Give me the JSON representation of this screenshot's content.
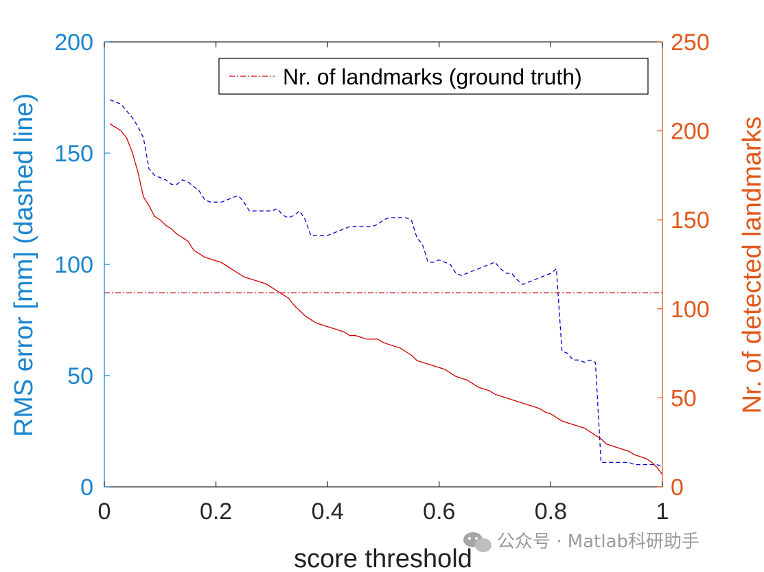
{
  "chart_data": {
    "type": "line",
    "xlabel": "score threshold",
    "ylabel_left": "RMS error [mm] (dashed line)",
    "ylabel_right": "Nr. of detected landmarks",
    "xlim": [
      0,
      1
    ],
    "ylim_left": [
      0,
      200
    ],
    "ylim_right": [
      0,
      250
    ],
    "xticks": [
      0,
      0.2,
      0.4,
      0.6,
      0.8,
      1
    ],
    "xtick_labels": [
      "0",
      "0.2",
      "0.4",
      "0.6",
      "0.8",
      "1"
    ],
    "yticks_left": [
      0,
      50,
      100,
      150,
      200
    ],
    "ytick_labels_left": [
      "0",
      "50",
      "100",
      "150",
      "200"
    ],
    "yticks_right": [
      0,
      50,
      100,
      150,
      200,
      250
    ],
    "ytick_labels_right": [
      "0",
      "50",
      "100",
      "150",
      "200",
      "250"
    ],
    "grid": false,
    "legend_position": "top-right",
    "colors": {
      "left_axis": "#1a85cf",
      "right_axis": "#e0581a",
      "rms_line": "#0000cc",
      "landmarks_line": "#cc0000",
      "ground_truth_line": "#cc0000"
    },
    "series": [
      {
        "axis": "left",
        "style": "dashed",
        "x": [
          0.01,
          0.02,
          0.03,
          0.04,
          0.05,
          0.06,
          0.07,
          0.08,
          0.09,
          0.1,
          0.11,
          0.12,
          0.13,
          0.14,
          0.15,
          0.16,
          0.17,
          0.18,
          0.19,
          0.2,
          0.21,
          0.22,
          0.23,
          0.24,
          0.25,
          0.26,
          0.27,
          0.28,
          0.29,
          0.3,
          0.31,
          0.32,
          0.33,
          0.34,
          0.35,
          0.36,
          0.37,
          0.38,
          0.39,
          0.4,
          0.41,
          0.42,
          0.43,
          0.44,
          0.45,
          0.46,
          0.47,
          0.48,
          0.49,
          0.5,
          0.51,
          0.52,
          0.53,
          0.54,
          0.55,
          0.56,
          0.57,
          0.58,
          0.59,
          0.6,
          0.61,
          0.62,
          0.63,
          0.64,
          0.65,
          0.66,
          0.67,
          0.68,
          0.69,
          0.7,
          0.71,
          0.72,
          0.73,
          0.74,
          0.75,
          0.76,
          0.77,
          0.78,
          0.79,
          0.8,
          0.81,
          0.82,
          0.83,
          0.84,
          0.85,
          0.86,
          0.87,
          0.88,
          0.89,
          0.9,
          0.91,
          0.92,
          0.93,
          0.94,
          0.95,
          0.96,
          0.97,
          0.98,
          0.99,
          1.0
        ],
        "values": [
          174,
          173,
          172,
          169,
          166,
          162,
          157,
          143,
          140,
          139,
          138,
          136,
          136,
          138,
          137,
          135,
          133,
          129,
          128,
          128,
          128,
          129,
          130,
          131,
          128,
          124,
          124,
          124,
          124,
          124,
          125,
          122,
          121,
          122,
          124,
          120,
          113,
          113,
          113,
          113,
          114,
          115,
          116,
          117,
          117,
          117,
          117,
          117,
          118,
          120,
          121,
          121,
          121,
          121,
          120,
          112,
          109,
          101,
          101,
          102,
          101,
          100,
          96,
          95,
          96,
          97,
          98,
          99,
          100,
          101,
          98,
          96,
          96,
          93,
          91,
          92,
          93,
          94,
          95,
          96,
          98,
          61,
          60,
          57,
          57,
          56,
          57,
          56,
          11,
          11,
          11,
          11,
          11,
          11,
          10,
          10,
          10,
          10,
          10,
          9
        ]
      },
      {
        "axis": "right",
        "style": "solid",
        "x": [
          0.01,
          0.02,
          0.03,
          0.04,
          0.05,
          0.06,
          0.07,
          0.08,
          0.09,
          0.1,
          0.11,
          0.12,
          0.13,
          0.14,
          0.15,
          0.16,
          0.17,
          0.18,
          0.19,
          0.2,
          0.21,
          0.22,
          0.23,
          0.24,
          0.25,
          0.26,
          0.27,
          0.28,
          0.29,
          0.3,
          0.31,
          0.32,
          0.33,
          0.34,
          0.35,
          0.36,
          0.37,
          0.38,
          0.39,
          0.4,
          0.41,
          0.42,
          0.43,
          0.44,
          0.45,
          0.46,
          0.47,
          0.48,
          0.49,
          0.5,
          0.51,
          0.52,
          0.53,
          0.54,
          0.55,
          0.56,
          0.57,
          0.58,
          0.59,
          0.6,
          0.61,
          0.62,
          0.63,
          0.64,
          0.65,
          0.66,
          0.67,
          0.68,
          0.69,
          0.7,
          0.71,
          0.72,
          0.73,
          0.74,
          0.75,
          0.76,
          0.77,
          0.78,
          0.79,
          0.8,
          0.81,
          0.82,
          0.83,
          0.84,
          0.85,
          0.86,
          0.87,
          0.88,
          0.89,
          0.9,
          0.91,
          0.92,
          0.93,
          0.94,
          0.95,
          0.96,
          0.97,
          0.98,
          0.99,
          1.0
        ],
        "values": [
          204,
          202,
          200,
          196,
          188,
          177,
          163,
          158,
          152,
          150,
          147,
          145,
          142,
          140,
          138,
          133,
          131,
          129,
          128,
          127,
          126,
          124,
          122,
          120,
          118,
          117,
          116,
          115,
          114,
          112,
          110,
          108,
          106,
          102,
          99,
          96,
          94,
          92,
          91,
          90,
          89,
          88,
          87,
          85,
          85,
          84,
          83,
          83,
          83,
          81,
          80,
          79,
          78,
          76,
          74,
          71,
          70,
          69,
          68,
          67,
          66,
          64,
          62,
          61,
          60,
          58,
          56,
          55,
          54,
          52,
          51,
          50,
          49,
          48,
          47,
          46,
          45,
          44,
          42,
          41,
          39,
          37,
          36,
          35,
          34,
          33,
          31,
          29,
          27,
          24,
          23,
          22,
          21,
          20,
          18,
          17,
          16,
          14,
          11,
          7
        ]
      },
      {
        "axis": "right",
        "style": "dash-dot",
        "name": "Nr. of landmarks (ground truth)",
        "x": [
          0,
          1
        ],
        "values": [
          109,
          109
        ]
      }
    ]
  },
  "watermark": {
    "icon": "wechat-icon",
    "text": "公众号 · Matlab科研助手"
  }
}
